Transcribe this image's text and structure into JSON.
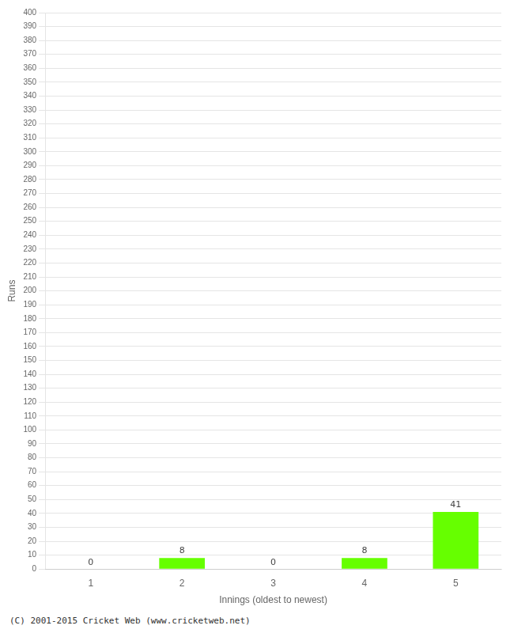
{
  "chart_data": {
    "type": "bar",
    "x_label": "Innings (oldest to newest)",
    "y_label": "Runs",
    "categories": [
      1,
      2,
      3,
      4,
      5
    ],
    "values": [
      0,
      8,
      0,
      8,
      41
    ],
    "color": "#66ff00",
    "data_labels": true,
    "ylim": [
      0,
      400
    ],
    "yticks": [
      0,
      10,
      20,
      30,
      40,
      50,
      60,
      70,
      80,
      90,
      100,
      110,
      120,
      130,
      140,
      150,
      160,
      170,
      180,
      190,
      200,
      210,
      220,
      230,
      240,
      250,
      260,
      270,
      280,
      290,
      300,
      310,
      320,
      330,
      340,
      350,
      360,
      370,
      380,
      390,
      400
    ],
    "grid": true,
    "annotation": "(C) 2001-2015 Cricket Web (www.cricketweb.net)"
  }
}
